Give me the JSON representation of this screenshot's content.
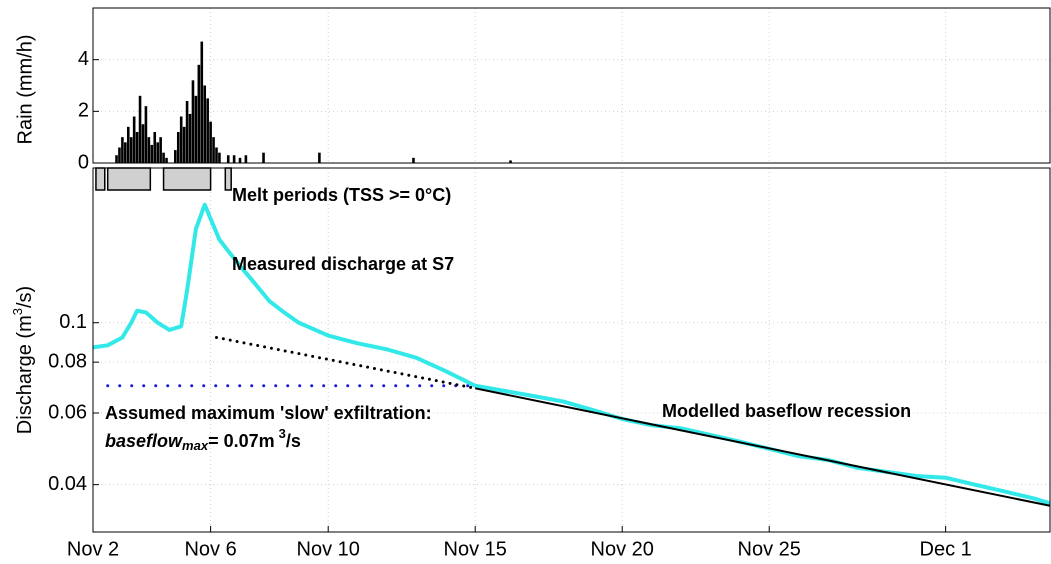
{
  "chart_data": [
    {
      "type": "bar",
      "ylabel": "Rain (mm/h)",
      "color": "#000000",
      "x": [
        306.8,
        306.9,
        307.0,
        307.1,
        307.2,
        307.3,
        307.4,
        307.5,
        307.6,
        307.7,
        307.8,
        307.9,
        308.0,
        308.1,
        308.2,
        308.3,
        308.4,
        308.5,
        308.8,
        308.9,
        309.0,
        309.1,
        309.2,
        309.3,
        309.4,
        309.5,
        309.6,
        309.7,
        309.8,
        309.9,
        310.0,
        310.1,
        310.2,
        310.3,
        310.6,
        310.8,
        311.0,
        311.2,
        311.8,
        313.7,
        316.9,
        320.2
      ],
      "values": [
        0.3,
        0.6,
        1.0,
        0.8,
        1.4,
        1.0,
        1.8,
        1.2,
        2.6,
        1.5,
        2.2,
        1.0,
        0.7,
        1.2,
        0.8,
        1.0,
        0.4,
        0.2,
        0.5,
        1.2,
        1.8,
        1.4,
        2.4,
        1.9,
        3.2,
        2.6,
        3.8,
        4.7,
        3.0,
        2.5,
        1.6,
        1.0,
        0.6,
        0.4,
        0.3,
        0.3,
        0.2,
        0.3,
        0.4,
        0.4,
        0.2,
        0.1
      ],
      "xlim": [
        306,
        338.55
      ],
      "ylim": [
        0,
        6
      ],
      "yticks": [
        0,
        2,
        4
      ],
      "grid": true
    },
    {
      "type": "line",
      "log_y": true,
      "grid": true,
      "ylabel": {
        "before": "Discharge (m",
        "sup": "3",
        "after": "/s)"
      },
      "xlim": [
        306,
        338.55
      ],
      "ylim": [
        0.0306,
        0.24
      ],
      "yticks": [
        0.04,
        0.06,
        0.08,
        0.1
      ],
      "xticks": [
        {
          "value": 306,
          "label": "Nov 2"
        },
        {
          "value": 310,
          "label": "Nov 6"
        },
        {
          "value": 314,
          "label": "Nov 10"
        },
        {
          "value": 319,
          "label": "Nov 15"
        },
        {
          "value": 324,
          "label": "Nov 20"
        },
        {
          "value": 329,
          "label": "Nov 25"
        },
        {
          "value": 335,
          "label": "Dec 1"
        }
      ],
      "melt_periods": {
        "label": "Melt periods (TSS >= 0°C)",
        "color": "#d0d0d0",
        "periods": [
          [
            306.1,
            306.4
          ],
          [
            306.5,
            307.95
          ],
          [
            308.4,
            310.0
          ],
          [
            310.5,
            310.7
          ]
        ]
      },
      "series": [
        {
          "name": "Measured discharge at S7",
          "color": "#33e8e8",
          "x": [
            306,
            306.5,
            307,
            307.3,
            307.5,
            307.8,
            308.2,
            308.6,
            309,
            309.2,
            309.5,
            309.8,
            310,
            310.3,
            310.6,
            311,
            311.5,
            312,
            312.5,
            313,
            314,
            315,
            316,
            317,
            318,
            319,
            320,
            321,
            322,
            323,
            324,
            325,
            326,
            327,
            328,
            329,
            330,
            331,
            332,
            333,
            334,
            335,
            336,
            337,
            338,
            338.55
          ],
          "values": [
            0.087,
            0.088,
            0.092,
            0.1,
            0.107,
            0.106,
            0.1,
            0.096,
            0.098,
            0.12,
            0.17,
            0.195,
            0.18,
            0.16,
            0.15,
            0.138,
            0.125,
            0.113,
            0.106,
            0.1,
            0.093,
            0.089,
            0.086,
            0.082,
            0.076,
            0.07,
            0.068,
            0.066,
            0.064,
            0.061,
            0.058,
            0.056,
            0.055,
            0.053,
            0.051,
            0.049,
            0.047,
            0.046,
            0.044,
            0.043,
            0.042,
            0.0416,
            0.04,
            0.0385,
            0.037,
            0.036
          ]
        }
      ],
      "recession": {
        "label": "Modelled baseflow recession",
        "color": "#000000",
        "segments": [
          {
            "style": "dotted",
            "x": [
              310.2,
              319
            ],
            "values": [
              0.092,
              0.069
            ]
          },
          {
            "style": "solid",
            "x": [
              319,
              338.55
            ],
            "values": [
              0.069,
              0.0355
            ]
          }
        ]
      },
      "baseflow_max": {
        "color": "#1a1adc",
        "value": 0.07,
        "x": [
          306.5,
          319
        ],
        "line1": "Assumed maximum 'slow' exfiltration:",
        "name": "baseflow",
        "sub": "max",
        "rest": "= 0.07m",
        "sup": "3",
        "unit": "/s"
      }
    }
  ]
}
